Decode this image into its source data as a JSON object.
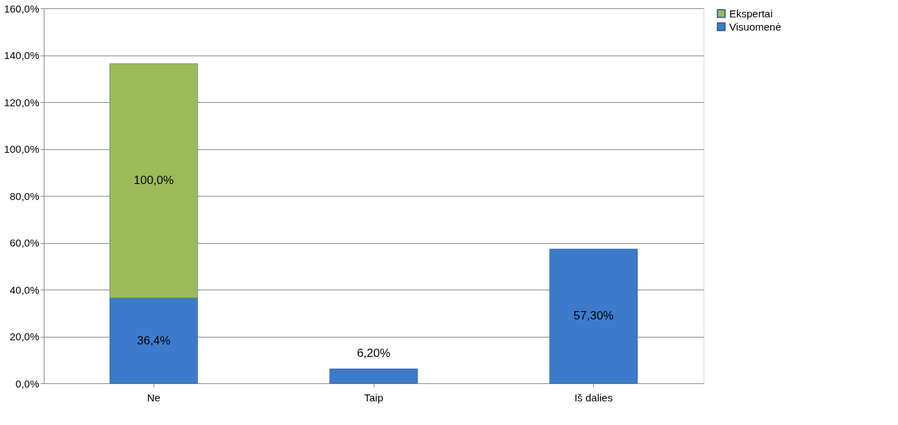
{
  "chart_data": {
    "type": "bar",
    "stacked": true,
    "categories": [
      "Ne",
      "Taip",
      "Iš dalies"
    ],
    "series": [
      {
        "name": "Visuomenė",
        "color": "#3c7bcb",
        "values": [
          36.4,
          6.2,
          57.3
        ],
        "value_labels": [
          "36,4%",
          "6,20%",
          "57,30%"
        ]
      },
      {
        "name": "Ekspertai",
        "color": "#9bbb59",
        "values": [
          100.0,
          null,
          null
        ],
        "value_labels": [
          "100,0%",
          null,
          null
        ]
      }
    ],
    "ylim": [
      0,
      160
    ],
    "yticks": [
      {
        "value": 0,
        "label": "0,0%"
      },
      {
        "value": 20,
        "label": "20,0%"
      },
      {
        "value": 40,
        "label": "40,0%"
      },
      {
        "value": 60,
        "label": "60,0%"
      },
      {
        "value": 80,
        "label": "80,0%"
      },
      {
        "value": 100,
        "label": "100,0%"
      },
      {
        "value": 120,
        "label": "120,0%"
      },
      {
        "value": 140,
        "label": "140,0%"
      },
      {
        "value": 160,
        "label": "160,0%"
      }
    ],
    "grid": "y",
    "legend": "right"
  }
}
